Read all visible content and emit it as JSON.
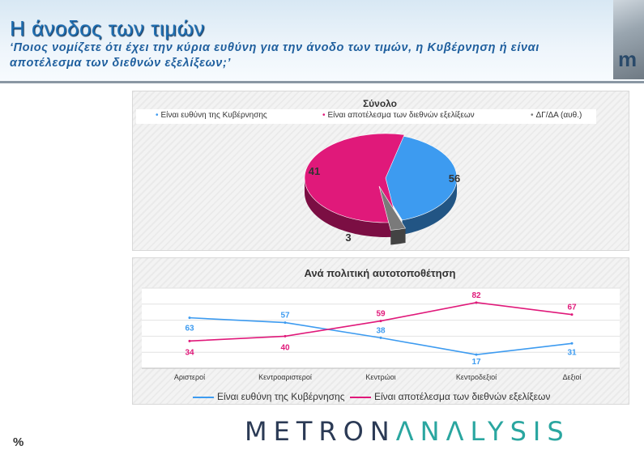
{
  "header": {
    "title": "Η άνοδος των τιμών",
    "subtitle": "‘Ποιος νομίζετε ότι έχει την κύρια ευθύνη για την άνοδο των τιμών, η Κυβέρνηση ή είναι αποτέλεσμα των διεθνών εξελίξεων;’",
    "logo_fragment": "m"
  },
  "footer": {
    "percent_sign": "%",
    "brand_part1": "METRON",
    "brand_part2": "ΛNΛLYSIS"
  },
  "colors": {
    "government": "#3d9bf0",
    "international": "#e0197a",
    "dk": "#7a7a7a"
  },
  "chart_data": [
    {
      "type": "pie",
      "title": "Σύνολο",
      "legend_position": "top",
      "slices": [
        {
          "label": "Είναι ευθύνη της Κυβέρνησης",
          "value": 41
        },
        {
          "label": "Είναι αποτέλεσμα των διεθνών εξελίξεων",
          "value": 56
        },
        {
          "label": "ΔΓ/ΔΑ (αυθ.)",
          "value": 3
        }
      ]
    },
    {
      "type": "line",
      "title": "Ανά πολιτική αυτοτοποθέτηση",
      "legend_position": "bottom",
      "grid": true,
      "categories": [
        "Αριστεροί",
        "Κεντροαριστεροί",
        "Κεντρώοι",
        "Κεντροδεξιοί",
        "Δεξιοί"
      ],
      "ylim": [
        0,
        100
      ],
      "series": [
        {
          "name": "Είναι ευθύνη της Κυβέρνησης",
          "values": [
            63,
            57,
            38,
            17,
            31
          ]
        },
        {
          "name": "Είναι αποτέλεσμα των διεθνών εξελίξεων",
          "values": [
            34,
            40,
            59,
            82,
            67
          ]
        }
      ]
    }
  ]
}
